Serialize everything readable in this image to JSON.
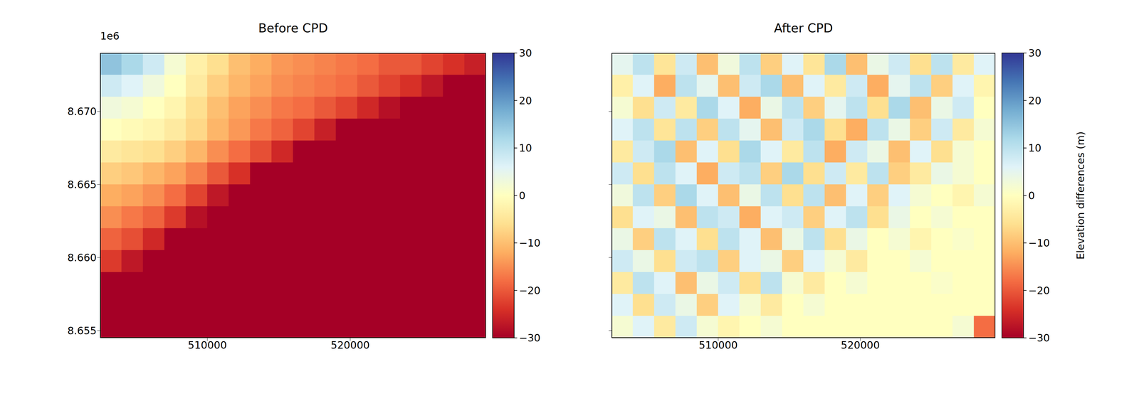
{
  "chart_data": [
    {
      "type": "heatmap",
      "title": "Before CPD",
      "annotation": "1e6",
      "xlim": [
        502500,
        529500
      ],
      "ylim": [
        8654500,
        8674000
      ],
      "xticks": [
        510000,
        520000
      ],
      "yticks": [
        {
          "value": 8655000,
          "label": "8.655"
        },
        {
          "value": 8660000,
          "label": "8.660"
        },
        {
          "value": 8665000,
          "label": "8.665"
        },
        {
          "value": 8670000,
          "label": "8.670"
        }
      ],
      "tick_labels": true,
      "x": [
        503250,
        504750,
        506250,
        507750,
        509250,
        510750,
        512250,
        513750,
        515250,
        516750,
        518250,
        519750,
        521250,
        522750,
        524250,
        525750,
        527250,
        528750
      ],
      "y": [
        8673250,
        8671750,
        8670250,
        8668750,
        8667250,
        8665750,
        8664250,
        8662750,
        8661250,
        8659750,
        8658250,
        8656750,
        8655250
      ],
      "values": [
        [
          15,
          12,
          8,
          2,
          -3,
          -6,
          -10,
          -12,
          -14,
          -15,
          -16,
          -17,
          -18,
          -20,
          -20,
          -22,
          -24,
          -26
        ],
        [
          8,
          6,
          3,
          0,
          -4,
          -8,
          -11,
          -13,
          -15,
          -16,
          -17,
          -18,
          -20,
          -22,
          -24,
          -27,
          -30,
          -30
        ],
        [
          3,
          2,
          0,
          -2,
          -6,
          -10,
          -13,
          -15,
          -17,
          -18,
          -20,
          -22,
          -25,
          -28,
          -30,
          -30,
          -30,
          -30
        ],
        [
          0,
          -1,
          -2,
          -4,
          -7,
          -11,
          -14,
          -17,
          -19,
          -22,
          -26,
          -30,
          -30,
          -30,
          -30,
          -30,
          -30,
          -30
        ],
        [
          -4,
          -5,
          -6,
          -8,
          -11,
          -15,
          -18,
          -21,
          -25,
          -30,
          -30,
          -30,
          -30,
          -30,
          -30,
          -30,
          -30,
          -30
        ],
        [
          -8,
          -9,
          -11,
          -13,
          -16,
          -20,
          -24,
          -30,
          -30,
          -30,
          -30,
          -30,
          -30,
          -30,
          -30,
          -30,
          -30,
          -30
        ],
        [
          -12,
          -13,
          -15,
          -18,
          -22,
          -27,
          -30,
          -30,
          -30,
          -30,
          -30,
          -30,
          -30,
          -30,
          -30,
          -30,
          -30,
          -30
        ],
        [
          -15,
          -17,
          -19,
          -23,
          -28,
          -30,
          -30,
          -30,
          -30,
          -30,
          -30,
          -30,
          -30,
          -30,
          -30,
          -30,
          -30,
          -30
        ],
        [
          -19,
          -21,
          -25,
          -30,
          -30,
          -30,
          -30,
          -30,
          -30,
          -30,
          -30,
          -30,
          -30,
          -30,
          -30,
          -30,
          -30,
          -30
        ],
        [
          -23,
          -27,
          -30,
          -30,
          -30,
          -30,
          -30,
          -30,
          -30,
          -30,
          -30,
          -30,
          -30,
          -30,
          -30,
          -30,
          -30,
          -30
        ],
        [
          -30,
          -30,
          -30,
          -30,
          -30,
          -30,
          -30,
          -30,
          -30,
          -30,
          -30,
          -30,
          -30,
          -30,
          -30,
          -30,
          -30,
          -30
        ],
        [
          -30,
          -30,
          -30,
          -30,
          -30,
          -30,
          -30,
          -30,
          -30,
          -30,
          -30,
          -30,
          -30,
          -30,
          -30,
          -30,
          -30,
          -30
        ],
        [
          -30,
          -30,
          -30,
          -30,
          -30,
          -30,
          -30,
          -30,
          -30,
          -30,
          -30,
          -30,
          -30,
          -30,
          -30,
          -30,
          -30,
          -30
        ]
      ],
      "colorbar": {
        "range": [
          -30,
          30
        ],
        "ticks": [
          {
            "value": -30,
            "label": "−30"
          },
          {
            "value": -20,
            "label": "−20"
          },
          {
            "value": -10,
            "label": "−10"
          },
          0,
          10,
          20,
          30
        ]
      }
    },
    {
      "type": "heatmap",
      "title": "After CPD",
      "xlim": [
        502500,
        529500
      ],
      "ylim": [
        8654500,
        8674000
      ],
      "xticks": [
        510000,
        520000
      ],
      "yticks": [
        8655000,
        8660000,
        8665000,
        8670000
      ],
      "tick_labels": "x",
      "x": [
        503250,
        504750,
        506250,
        507750,
        509250,
        510750,
        512250,
        513750,
        515250,
        516750,
        518250,
        519750,
        521250,
        522750,
        524250,
        525750,
        527250,
        528750
      ],
      "y": [
        8673250,
        8671750,
        8670250,
        8668750,
        8667250,
        8665750,
        8664250,
        8662750,
        8661250,
        8659750,
        8658250,
        8656750,
        8655250
      ],
      "values": [
        [
          5,
          10,
          -5,
          8,
          -10,
          3,
          10,
          -8,
          6,
          -5,
          12,
          -10,
          4,
          8,
          -6,
          10,
          -4,
          6
        ],
        [
          -3,
          6,
          -12,
          10,
          5,
          -10,
          8,
          12,
          -10,
          6,
          -4,
          8,
          -12,
          5,
          10,
          -8,
          6,
          -2
        ],
        [
          2,
          -6,
          8,
          -4,
          12,
          6,
          -12,
          4,
          10,
          -8,
          5,
          10,
          -6,
          12,
          -10,
          4,
          8,
          0
        ],
        [
          6,
          10,
          -5,
          10,
          -8,
          10,
          5,
          -10,
          8,
          12,
          -6,
          -12,
          10,
          4,
          -8,
          8,
          -4,
          2
        ],
        [
          -4,
          8,
          12,
          -10,
          6,
          -6,
          12,
          6,
          -4,
          10,
          -12,
          8,
          4,
          -10,
          6,
          -6,
          2,
          0
        ],
        [
          8,
          -6,
          10,
          6,
          -12,
          8,
          10,
          -8,
          12,
          -6,
          8,
          -4,
          10,
          -8,
          -4,
          4,
          2,
          0
        ],
        [
          3,
          10,
          -8,
          12,
          6,
          -10,
          4,
          10,
          -6,
          10,
          -10,
          6,
          -8,
          6,
          2,
          0,
          -2,
          2
        ],
        [
          -6,
          6,
          4,
          -10,
          10,
          8,
          -12,
          6,
          8,
          -8,
          6,
          10,
          -6,
          4,
          0,
          2,
          0,
          0
        ],
        [
          4,
          -8,
          10,
          6,
          -6,
          10,
          6,
          -10,
          4,
          10,
          -6,
          4,
          0,
          2,
          -2,
          0,
          1,
          0
        ],
        [
          8,
          4,
          -6,
          8,
          10,
          -8,
          6,
          4,
          -8,
          6,
          2,
          -4,
          0,
          0,
          2,
          0,
          0,
          0
        ],
        [
          -4,
          10,
          6,
          -10,
          4,
          8,
          -6,
          10,
          2,
          -4,
          0,
          2,
          0,
          0,
          0,
          1,
          0,
          0
        ],
        [
          6,
          -6,
          8,
          4,
          -8,
          6,
          2,
          -4,
          0,
          2,
          0,
          0,
          0,
          0,
          0,
          0,
          0,
          0
        ],
        [
          2,
          6,
          -4,
          8,
          2,
          -2,
          0,
          2,
          0,
          0,
          0,
          0,
          0,
          0,
          0,
          0,
          2,
          -18
        ]
      ],
      "colorbar": {
        "range": [
          -30,
          30
        ],
        "ticks": [
          {
            "value": -30,
            "label": "−30"
          },
          {
            "value": -20,
            "label": "−20"
          },
          {
            "value": -10,
            "label": "−10"
          },
          0,
          10,
          20,
          30
        ],
        "label": "Elevation differences (m)"
      }
    }
  ]
}
